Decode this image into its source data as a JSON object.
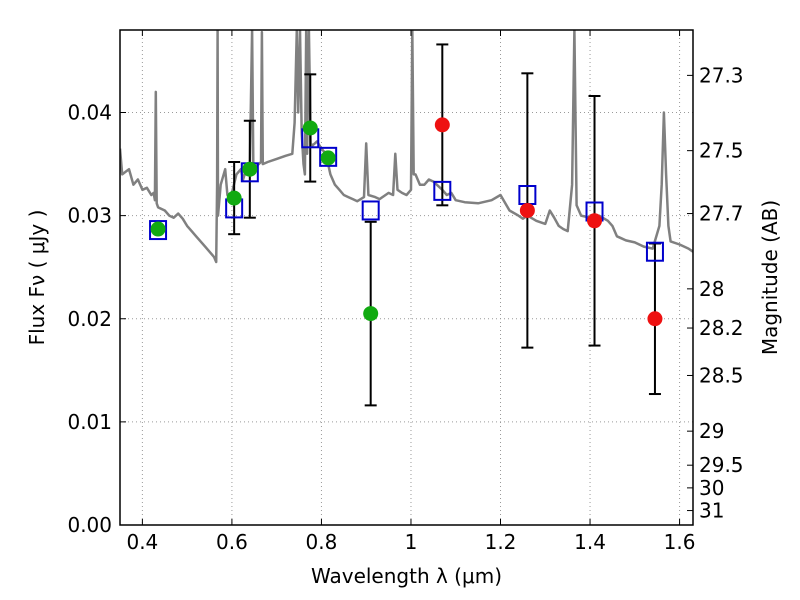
{
  "chart_data": {
    "type": "scatter",
    "xlabel": "Wavelength  λ (μm)",
    "ylabel": "Flux  Fν  ( μJy )",
    "ylabel_right": "Magnitude (AB)",
    "xlim": [
      0.35,
      1.63
    ],
    "ylim": [
      0.0,
      0.048
    ],
    "grid": true,
    "x_ticks": [
      0.4,
      0.6,
      0.8,
      1.0,
      1.2,
      1.4,
      1.6
    ],
    "x_tick_labels": [
      "0.4",
      "0.6",
      "0.8",
      "1",
      "1.2",
      "1.4",
      "1.6"
    ],
    "y_ticks": [
      0.0,
      0.01,
      0.02,
      0.03,
      0.04
    ],
    "y_tick_labels": [
      "0.00",
      "0.01",
      "0.02",
      "0.03",
      "0.04"
    ],
    "right_ticks": [
      {
        "flux": 0.0436,
        "label": "27.3"
      },
      {
        "flux": 0.0363,
        "label": "27.5"
      },
      {
        "flux": 0.0302,
        "label": "27.7"
      },
      {
        "flux": 0.0229,
        "label": "28"
      },
      {
        "flux": 0.0191,
        "label": "28.2"
      },
      {
        "flux": 0.0145,
        "label": "28.5"
      },
      {
        "flux": 0.0091,
        "label": "29"
      },
      {
        "flux": 0.0058,
        "label": "29.5"
      },
      {
        "flux": 0.0036,
        "label": "30"
      },
      {
        "flux": 0.0014,
        "label": "31"
      }
    ],
    "colors": {
      "model": "#808080",
      "model_photometry": "#0000cc",
      "green_points": "#11aa11",
      "red_points": "#ee1111",
      "errorbar": "#000000",
      "grid": "#9a9a9a"
    },
    "series": [
      {
        "marker": "square",
        "color": "#0000cc",
        "points": [
          {
            "x": 0.435,
            "y": 0.0286
          },
          {
            "x": 0.605,
            "y": 0.0307
          },
          {
            "x": 0.64,
            "y": 0.0342
          },
          {
            "x": 0.775,
            "y": 0.0375
          },
          {
            "x": 0.815,
            "y": 0.0357
          },
          {
            "x": 0.91,
            "y": 0.0305
          },
          {
            "x": 1.07,
            "y": 0.0324
          },
          {
            "x": 1.26,
            "y": 0.032
          },
          {
            "x": 1.41,
            "y": 0.0304
          },
          {
            "x": 1.545,
            "y": 0.0265
          }
        ]
      },
      {
        "marker": "circle",
        "color": "#11aa11",
        "points": [
          {
            "x": 0.435,
            "y": 0.0287,
            "yerr": null
          },
          {
            "x": 0.605,
            "y": 0.0317,
            "yerr": 0.0035
          },
          {
            "x": 0.64,
            "y": 0.0345,
            "yerr": 0.0047
          },
          {
            "x": 0.775,
            "y": 0.0385,
            "yerr": 0.0052
          },
          {
            "x": 0.815,
            "y": 0.0356,
            "yerr": null
          },
          {
            "x": 0.91,
            "y": 0.0205,
            "yerr": 0.0089
          }
        ]
      },
      {
        "marker": "circle",
        "color": "#ee1111",
        "points": [
          {
            "x": 1.07,
            "y": 0.0388,
            "yerr": 0.0078
          },
          {
            "x": 1.26,
            "y": 0.0305,
            "yerr": 0.0133
          },
          {
            "x": 1.41,
            "y": 0.0295,
            "yerr": 0.0121
          },
          {
            "x": 1.545,
            "y": 0.02,
            "yerr": 0.0073
          }
        ]
      }
    ],
    "model_spectrum": {
      "color": "#808080",
      "points": [
        [
          0.35,
          0.0365
        ],
        [
          0.355,
          0.034
        ],
        [
          0.37,
          0.0345
        ],
        [
          0.38,
          0.033
        ],
        [
          0.39,
          0.0335
        ],
        [
          0.4,
          0.0325
        ],
        [
          0.41,
          0.0327
        ],
        [
          0.42,
          0.032
        ],
        [
          0.425,
          0.0322
        ],
        [
          0.428,
          0.0315
        ],
        [
          0.43,
          0.042
        ],
        [
          0.432,
          0.0312
        ],
        [
          0.435,
          0.0308
        ],
        [
          0.45,
          0.0305
        ],
        [
          0.46,
          0.03
        ],
        [
          0.47,
          0.0298
        ],
        [
          0.48,
          0.0302
        ],
        [
          0.49,
          0.0297
        ],
        [
          0.5,
          0.029
        ],
        [
          0.51,
          0.0285
        ],
        [
          0.52,
          0.028
        ],
        [
          0.53,
          0.0275
        ],
        [
          0.54,
          0.027
        ],
        [
          0.55,
          0.0265
        ],
        [
          0.56,
          0.026
        ],
        [
          0.565,
          0.0255
        ],
        [
          0.567,
          0.033
        ],
        [
          0.568,
          0.048
        ],
        [
          0.569,
          0.03
        ],
        [
          0.575,
          0.033
        ],
        [
          0.585,
          0.0345
        ],
        [
          0.59,
          0.032
        ],
        [
          0.6,
          0.0322
        ],
        [
          0.61,
          0.034
        ],
        [
          0.62,
          0.0345
        ],
        [
          0.625,
          0.0335
        ],
        [
          0.63,
          0.0342
        ],
        [
          0.635,
          0.035
        ],
        [
          0.64,
          0.0346
        ],
        [
          0.645,
          0.048
        ],
        [
          0.648,
          0.034
        ],
        [
          0.655,
          0.0348
        ],
        [
          0.665,
          0.0352
        ],
        [
          0.667,
          0.0478
        ],
        [
          0.669,
          0.035
        ],
        [
          0.68,
          0.0352
        ],
        [
          0.7,
          0.0355
        ],
        [
          0.72,
          0.0358
        ],
        [
          0.735,
          0.036
        ],
        [
          0.74,
          0.039
        ],
        [
          0.745,
          0.048
        ],
        [
          0.748,
          0.04
        ],
        [
          0.752,
          0.048
        ],
        [
          0.756,
          0.038
        ],
        [
          0.76,
          0.035
        ],
        [
          0.763,
          0.034
        ],
        [
          0.766,
          0.048
        ],
        [
          0.768,
          0.036
        ],
        [
          0.772,
          0.048
        ],
        [
          0.776,
          0.037
        ],
        [
          0.78,
          0.0368
        ],
        [
          0.79,
          0.0372
        ],
        [
          0.8,
          0.0365
        ],
        [
          0.81,
          0.036
        ],
        [
          0.82,
          0.034
        ],
        [
          0.83,
          0.033
        ],
        [
          0.84,
          0.0325
        ],
        [
          0.85,
          0.032
        ],
        [
          0.86,
          0.0318
        ],
        [
          0.87,
          0.0316
        ],
        [
          0.88,
          0.0314
        ],
        [
          0.895,
          0.0318
        ],
        [
          0.9,
          0.037
        ],
        [
          0.905,
          0.032
        ],
        [
          0.92,
          0.0318
        ],
        [
          0.93,
          0.0316
        ],
        [
          0.94,
          0.0319
        ],
        [
          0.95,
          0.0322
        ],
        [
          0.96,
          0.032
        ],
        [
          0.965,
          0.036
        ],
        [
          0.97,
          0.0325
        ],
        [
          0.98,
          0.0322
        ],
        [
          0.99,
          0.032
        ],
        [
          1.0,
          0.0325
        ],
        [
          1.003,
          0.048
        ],
        [
          1.006,
          0.034
        ],
        [
          1.01,
          0.034
        ],
        [
          1.02,
          0.033
        ],
        [
          1.03,
          0.033
        ],
        [
          1.04,
          0.0335
        ],
        [
          1.05,
          0.0333
        ],
        [
          1.07,
          0.0325
        ],
        [
          1.08,
          0.032
        ],
        [
          1.09,
          0.0322
        ],
        [
          1.1,
          0.0315
        ],
        [
          1.12,
          0.0313
        ],
        [
          1.15,
          0.0312
        ],
        [
          1.18,
          0.0315
        ],
        [
          1.2,
          0.032
        ],
        [
          1.22,
          0.0305
        ],
        [
          1.24,
          0.03
        ],
        [
          1.25,
          0.0297
        ],
        [
          1.26,
          0.03
        ],
        [
          1.28,
          0.0295
        ],
        [
          1.3,
          0.0292
        ],
        [
          1.31,
          0.0305
        ],
        [
          1.32,
          0.0298
        ],
        [
          1.33,
          0.029
        ],
        [
          1.34,
          0.0287
        ],
        [
          1.35,
          0.0285
        ],
        [
          1.36,
          0.033
        ],
        [
          1.365,
          0.048
        ],
        [
          1.37,
          0.031
        ],
        [
          1.38,
          0.03
        ],
        [
          1.4,
          0.0298
        ],
        [
          1.42,
          0.03
        ],
        [
          1.44,
          0.0295
        ],
        [
          1.45,
          0.029
        ],
        [
          1.46,
          0.028
        ],
        [
          1.47,
          0.0278
        ],
        [
          1.48,
          0.0276
        ],
        [
          1.5,
          0.0274
        ],
        [
          1.52,
          0.027
        ],
        [
          1.54,
          0.0268
        ],
        [
          1.555,
          0.029
        ],
        [
          1.56,
          0.033
        ],
        [
          1.565,
          0.04
        ],
        [
          1.57,
          0.034
        ],
        [
          1.575,
          0.029
        ],
        [
          1.58,
          0.0275
        ],
        [
          1.6,
          0.0272
        ],
        [
          1.62,
          0.0268
        ],
        [
          1.63,
          0.0265
        ]
      ]
    }
  }
}
